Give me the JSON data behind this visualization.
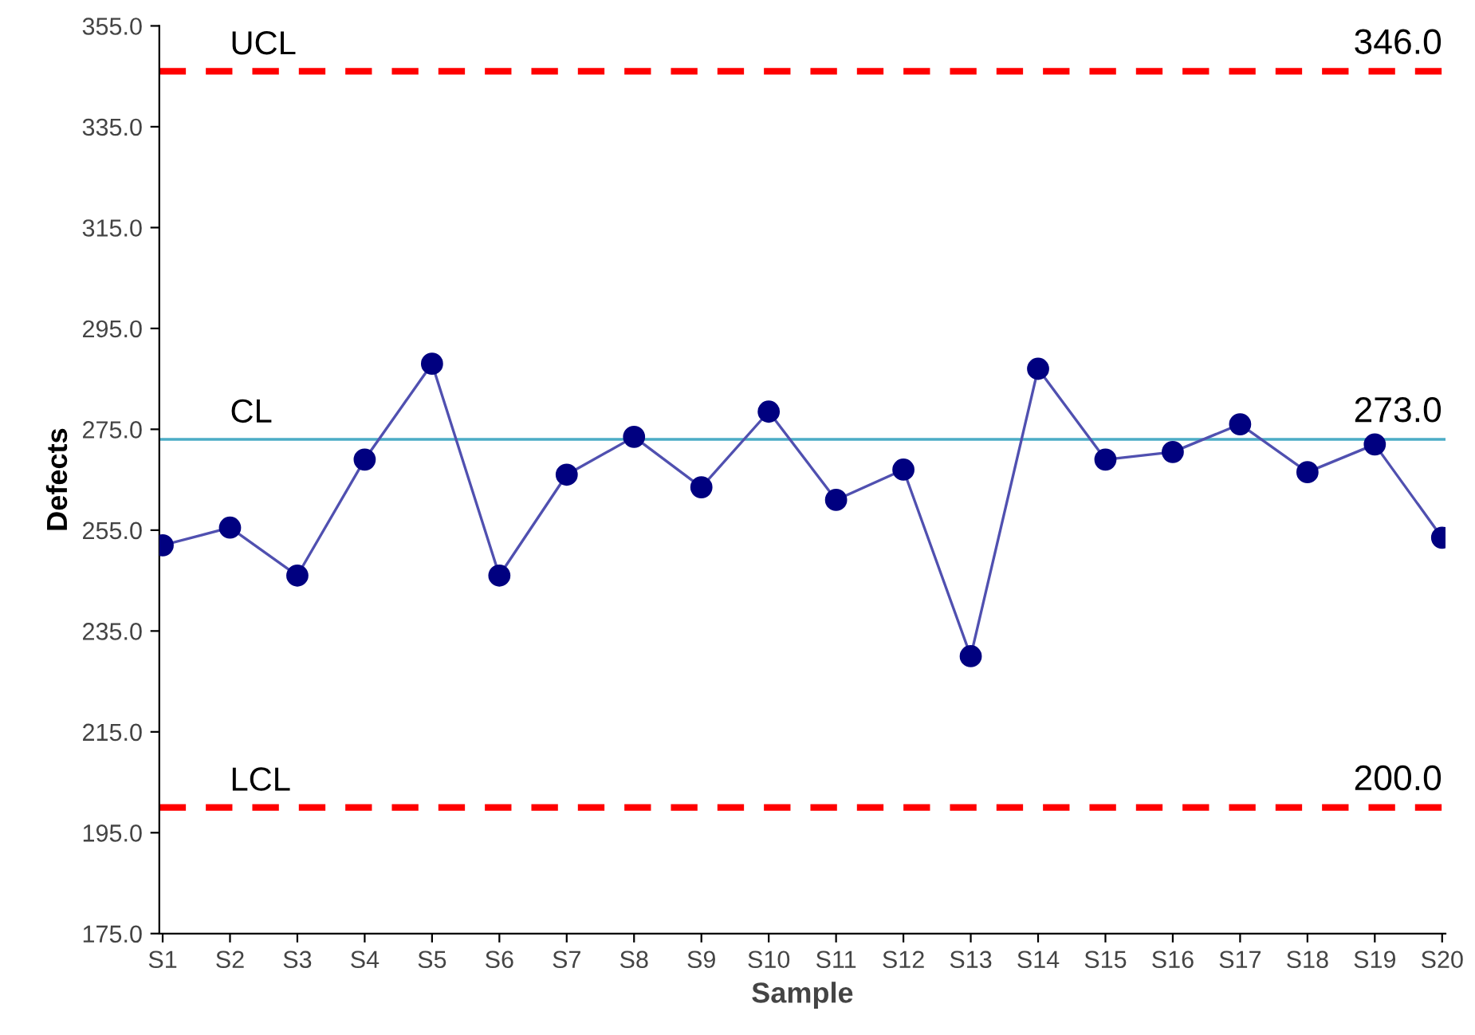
{
  "chart_data": {
    "type": "line",
    "xlabel": "Sample",
    "ylabel": "Defects",
    "categories": [
      "S1",
      "S2",
      "S3",
      "S4",
      "S5",
      "S6",
      "S7",
      "S8",
      "S9",
      "S10",
      "S11",
      "S12",
      "S13",
      "S14",
      "S15",
      "S16",
      "S17",
      "S18",
      "S19",
      "S20"
    ],
    "series": [
      {
        "color": "#000080",
        "values": [
          252,
          255.5,
          246,
          269,
          288,
          246,
          266,
          273.5,
          263.5,
          278.5,
          261,
          267,
          230,
          287,
          269,
          270.5,
          276,
          266.5,
          272,
          253.5
        ]
      }
    ],
    "marker": "circle",
    "line_style": "solid",
    "grid": false,
    "legend": false,
    "ylim": [
      175,
      355
    ],
    "yticks": [
      {
        "value": 175,
        "label": "175.0"
      },
      {
        "value": 195,
        "label": "195.0"
      },
      {
        "value": 215,
        "label": "215.0"
      },
      {
        "value": 235,
        "label": "235.0"
      },
      {
        "value": 255,
        "label": "255.0"
      },
      {
        "value": 275,
        "label": "275.0"
      },
      {
        "value": 295,
        "label": "295.0"
      },
      {
        "value": 315,
        "label": "315.0"
      },
      {
        "value": 335,
        "label": "335.0"
      },
      {
        "value": 355,
        "label": "355.0"
      }
    ],
    "ref_lines": [
      {
        "axis": "y",
        "value": 346,
        "label": "UCL",
        "color": "#ff0000",
        "line_style": "dashed"
      },
      {
        "axis": "y",
        "value": 273,
        "label": "CL",
        "color": "#4bacc6",
        "line_style": "solid"
      },
      {
        "axis": "y",
        "value": 200,
        "label": "LCL",
        "color": "#ff0000",
        "line_style": "dashed"
      }
    ],
    "annotations": [
      {
        "text": "346.0",
        "x": "S20",
        "y": 346
      },
      {
        "text": "273.0",
        "x": "S20",
        "y": 273
      },
      {
        "text": "200.0",
        "x": "S20",
        "y": 200
      }
    ]
  }
}
